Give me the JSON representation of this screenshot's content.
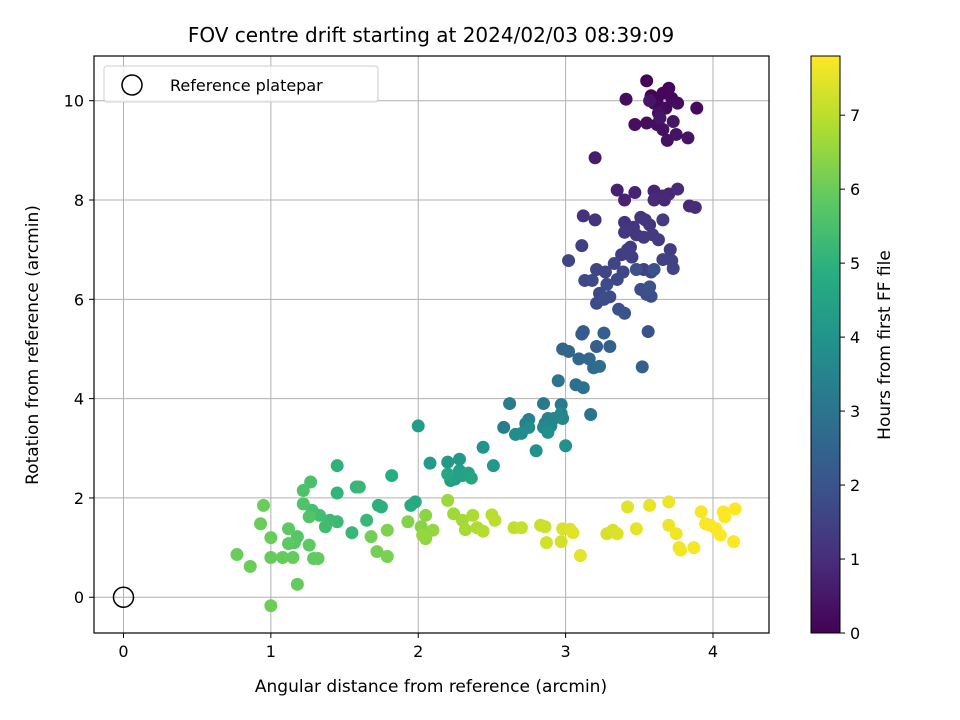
{
  "chart_data": {
    "type": "scatter",
    "title": "FOV centre drift starting at 2024/02/03 08:39:09",
    "xlabel": "Angular distance from reference (arcmin)",
    "ylabel": "Rotation from reference (arcmin)",
    "colorbar_label": "Hours from first FF file",
    "xlim": [
      -0.2,
      4.38
    ],
    "ylim": [
      -0.72,
      10.9
    ],
    "clim": [
      0,
      7.8
    ],
    "xticks": [
      0,
      1,
      2,
      3,
      4
    ],
    "yticks": [
      0,
      2,
      4,
      6,
      8,
      10
    ],
    "cticks": [
      0,
      1,
      2,
      3,
      4,
      5,
      6,
      7
    ],
    "grid": true,
    "colormap": "viridis",
    "legend": {
      "placement": "upper-left",
      "entries": [
        "Reference platepar"
      ]
    },
    "reference_point": {
      "x": 0,
      "y": 0
    },
    "points": [
      [
        3.55,
        10.4,
        0.05
      ],
      [
        3.58,
        10.1,
        0.08
      ],
      [
        3.62,
        9.98,
        0.1
      ],
      [
        3.66,
        10.15,
        0.12
      ],
      [
        3.7,
        10.25,
        0.14
      ],
      [
        3.6,
        9.95,
        0.16
      ],
      [
        3.72,
        10.05,
        0.18
      ],
      [
        3.68,
        9.85,
        0.2
      ],
      [
        3.76,
        9.95,
        0.22
      ],
      [
        3.89,
        9.85,
        0.24
      ],
      [
        3.41,
        10.03,
        0.26
      ],
      [
        3.47,
        9.52,
        0.28
      ],
      [
        3.55,
        9.55,
        0.3
      ],
      [
        3.62,
        9.52,
        0.32
      ],
      [
        3.66,
        9.42,
        0.34
      ],
      [
        3.63,
        9.75,
        0.36
      ],
      [
        3.69,
        9.2,
        0.38
      ],
      [
        3.75,
        9.32,
        0.4
      ],
      [
        3.83,
        9.25,
        0.42
      ],
      [
        3.64,
        9.65,
        0.44
      ],
      [
        3.57,
        10.0,
        0.46
      ],
      [
        3.73,
        9.58,
        0.48
      ],
      [
        3.2,
        8.85,
        0.6
      ],
      [
        3.35,
        8.2,
        0.7
      ],
      [
        3.47,
        8.15,
        0.75
      ],
      [
        3.4,
        8.0,
        0.78
      ],
      [
        3.6,
        8.18,
        0.8
      ],
      [
        3.62,
        8.05,
        0.82
      ],
      [
        3.66,
        8.08,
        0.84
      ],
      [
        3.7,
        8.12,
        0.86
      ],
      [
        3.67,
        8.0,
        0.88
      ],
      [
        3.6,
        8.0,
        0.9
      ],
      [
        3.76,
        8.22,
        0.92
      ],
      [
        3.84,
        7.88,
        0.94
      ],
      [
        3.88,
        7.85,
        0.96
      ],
      [
        3.12,
        7.68,
        1.1
      ],
      [
        3.2,
        7.6,
        1.12
      ],
      [
        3.4,
        7.55,
        1.14
      ],
      [
        3.46,
        7.45,
        1.16
      ],
      [
        3.51,
        7.65,
        1.18
      ],
      [
        3.54,
        7.6,
        1.2
      ],
      [
        3.57,
        7.5,
        1.22
      ],
      [
        3.48,
        7.3,
        1.24
      ],
      [
        3.4,
        7.35,
        1.26
      ],
      [
        3.44,
        7.05,
        1.28
      ],
      [
        3.53,
        7.25,
        1.3
      ],
      [
        3.59,
        7.3,
        1.32
      ],
      [
        3.63,
        7.2,
        1.34
      ],
      [
        3.66,
        7.6,
        1.36
      ],
      [
        3.71,
        7.0,
        1.38
      ],
      [
        3.38,
        6.9,
        1.4
      ],
      [
        3.11,
        7.08,
        1.42
      ],
      [
        3.45,
        6.85,
        1.44
      ],
      [
        3.42,
        7.0,
        1.46
      ],
      [
        3.53,
        6.6,
        1.48
      ],
      [
        3.58,
        6.55,
        1.5
      ],
      [
        3.66,
        6.8,
        1.52
      ],
      [
        3.72,
        6.78,
        1.54
      ],
      [
        3.73,
        6.62,
        1.56
      ],
      [
        3.02,
        6.78,
        1.58
      ],
      [
        3.21,
        6.6,
        1.6
      ],
      [
        3.27,
        6.55,
        1.62
      ],
      [
        3.33,
        6.72,
        1.64
      ],
      [
        3.39,
        6.55,
        1.66
      ],
      [
        3.35,
        6.4,
        1.68
      ],
      [
        3.13,
        6.38,
        1.7
      ],
      [
        3.18,
        6.38,
        1.72
      ],
      [
        3.23,
        6.12,
        1.74
      ],
      [
        3.28,
        6.3,
        1.76
      ],
      [
        3.21,
        5.92,
        1.78
      ],
      [
        3.3,
        6.05,
        1.8
      ],
      [
        3.26,
        6.0,
        1.82
      ],
      [
        3.51,
        6.2,
        1.84
      ],
      [
        3.55,
        6.1,
        1.86
      ],
      [
        3.58,
        6.06,
        1.88
      ],
      [
        3.48,
        6.6,
        1.9
      ],
      [
        3.6,
        6.6,
        1.92
      ],
      [
        3.57,
        6.25,
        1.94
      ],
      [
        3.36,
        5.8,
        1.96
      ],
      [
        3.4,
        5.72,
        1.98
      ],
      [
        3.56,
        5.35,
        2.0
      ],
      [
        3.12,
        5.35,
        2.2
      ],
      [
        3.11,
        5.3,
        2.25
      ],
      [
        3.21,
        5.05,
        2.3
      ],
      [
        3.26,
        5.32,
        2.35
      ],
      [
        3.3,
        5.05,
        2.4
      ],
      [
        2.98,
        5.0,
        2.5
      ],
      [
        3.02,
        4.95,
        2.55
      ],
      [
        3.09,
        4.8,
        2.6
      ],
      [
        3.16,
        4.8,
        2.65
      ],
      [
        3.19,
        4.62,
        2.7
      ],
      [
        3.23,
        4.65,
        2.75
      ],
      [
        3.52,
        4.64,
        2.4
      ],
      [
        3.07,
        4.28,
        2.85
      ],
      [
        3.12,
        4.22,
        2.9
      ],
      [
        2.95,
        4.36,
        2.95
      ],
      [
        3.17,
        3.68,
        3.0
      ],
      [
        2.85,
        3.9,
        3.1
      ],
      [
        2.97,
        3.88,
        3.15
      ],
      [
        2.62,
        3.9,
        3.2
      ],
      [
        2.58,
        3.42,
        3.25
      ],
      [
        2.73,
        3.5,
        3.3
      ],
      [
        2.75,
        3.58,
        3.35
      ],
      [
        2.86,
        3.5,
        3.4
      ],
      [
        2.88,
        3.6,
        3.45
      ],
      [
        2.92,
        3.6,
        3.5
      ],
      [
        2.97,
        3.7,
        3.55
      ],
      [
        2.9,
        3.45,
        3.6
      ],
      [
        2.85,
        3.42,
        3.65
      ],
      [
        2.75,
        3.42,
        3.7
      ],
      [
        2.66,
        3.28,
        3.75
      ],
      [
        2.7,
        3.3,
        3.8
      ],
      [
        2.88,
        3.32,
        3.85
      ],
      [
        2.8,
        2.95,
        3.9
      ],
      [
        3.0,
        3.05,
        3.95
      ],
      [
        2.98,
        3.6,
        3.58
      ],
      [
        2.44,
        3.02,
        4.0
      ],
      [
        2.51,
        2.65,
        4.1
      ],
      [
        2.28,
        2.78,
        4.15
      ],
      [
        2.2,
        2.72,
        4.2
      ],
      [
        2.08,
        2.7,
        4.25
      ],
      [
        2.22,
        2.35,
        4.3
      ],
      [
        2.28,
        2.55,
        4.35
      ],
      [
        2.25,
        2.38,
        4.4
      ],
      [
        2.3,
        2.45,
        4.45
      ],
      [
        2.34,
        2.5,
        4.5
      ],
      [
        2.36,
        2.4,
        4.55
      ],
      [
        2.2,
        2.48,
        4.6
      ],
      [
        2.0,
        3.45,
        4.3
      ],
      [
        1.98,
        1.92,
        4.7
      ],
      [
        1.95,
        1.85,
        4.75
      ],
      [
        1.82,
        2.45,
        4.85
      ],
      [
        1.73,
        1.85,
        4.9
      ],
      [
        1.75,
        1.82,
        4.95
      ],
      [
        1.45,
        2.65,
        5.0
      ],
      [
        1.45,
        2.1,
        5.05
      ],
      [
        1.58,
        2.22,
        5.1
      ],
      [
        1.55,
        1.3,
        5.15
      ],
      [
        1.65,
        1.55,
        5.2
      ],
      [
        1.45,
        1.52,
        5.25
      ],
      [
        1.4,
        1.55,
        5.3
      ],
      [
        1.37,
        1.42,
        5.35
      ],
      [
        1.33,
        1.65,
        5.4
      ],
      [
        1.28,
        1.75,
        5.45
      ],
      [
        1.27,
        2.32,
        5.5
      ],
      [
        1.22,
        2.15,
        5.55
      ],
      [
        1.22,
        1.88,
        5.6
      ],
      [
        1.26,
        1.62,
        5.65
      ],
      [
        1.18,
        1.22,
        5.7
      ],
      [
        1.16,
        1.1,
        5.75
      ],
      [
        1.12,
        1.38,
        5.8
      ],
      [
        1.12,
        1.08,
        5.82
      ],
      [
        1.26,
        1.05,
        5.85
      ],
      [
        1.29,
        0.78,
        5.88
      ],
      [
        1.32,
        0.78,
        5.9
      ],
      [
        1.18,
        0.26,
        5.92
      ],
      [
        1.08,
        0.8,
        5.94
      ],
      [
        1.15,
        0.8,
        5.95
      ],
      [
        1.0,
        0.8,
        5.96
      ],
      [
        1.0,
        1.2,
        5.97
      ],
      [
        0.95,
        1.85,
        5.98
      ],
      [
        0.93,
        1.48,
        5.99
      ],
      [
        0.77,
        0.86,
        6.0
      ],
      [
        0.86,
        0.62,
        6.02
      ],
      [
        1.0,
        -0.17,
        6.05
      ],
      [
        1.68,
        1.22,
        6.1
      ],
      [
        1.72,
        0.92,
        6.15
      ],
      [
        1.79,
        0.82,
        6.2
      ],
      [
        1.79,
        1.35,
        6.25
      ],
      [
        1.6,
        2.22,
        5.2
      ],
      [
        1.93,
        1.52,
        6.3
      ],
      [
        2.02,
        1.42,
        6.35
      ],
      [
        2.05,
        1.65,
        6.4
      ],
      [
        2.05,
        1.18,
        6.45
      ],
      [
        2.1,
        1.35,
        6.5
      ],
      [
        2.03,
        1.25,
        6.55
      ],
      [
        2.2,
        1.95,
        6.6
      ],
      [
        2.24,
        1.68,
        6.65
      ],
      [
        2.3,
        1.55,
        6.7
      ],
      [
        2.32,
        1.36,
        6.75
      ],
      [
        2.37,
        1.65,
        6.8
      ],
      [
        2.4,
        1.4,
        6.85
      ],
      [
        2.44,
        1.33,
        6.9
      ],
      [
        2.5,
        1.66,
        6.95
      ],
      [
        2.52,
        1.55,
        7.0
      ],
      [
        2.65,
        1.4,
        7.05
      ],
      [
        2.7,
        1.4,
        7.1
      ],
      [
        2.83,
        1.45,
        7.15
      ],
      [
        2.86,
        1.42,
        7.2
      ],
      [
        2.87,
        1.1,
        7.25
      ],
      [
        2.97,
        1.12,
        7.3
      ],
      [
        2.98,
        1.38,
        7.35
      ],
      [
        3.03,
        1.37,
        7.4
      ],
      [
        3.05,
        1.3,
        7.45
      ],
      [
        3.1,
        0.84,
        7.5
      ],
      [
        3.28,
        1.28,
        7.3
      ],
      [
        3.32,
        1.35,
        7.35
      ],
      [
        3.35,
        1.28,
        7.4
      ],
      [
        3.42,
        1.82,
        7.45
      ],
      [
        3.48,
        1.38,
        7.5
      ],
      [
        3.57,
        1.85,
        7.55
      ],
      [
        3.7,
        1.92,
        7.6
      ],
      [
        3.7,
        1.45,
        7.62
      ],
      [
        3.75,
        1.28,
        7.64
      ],
      [
        3.77,
        1.0,
        7.66
      ],
      [
        3.78,
        0.95,
        7.68
      ],
      [
        3.87,
        1.0,
        7.7
      ],
      [
        3.92,
        1.72,
        7.72
      ],
      [
        3.95,
        1.48,
        7.74
      ],
      [
        3.98,
        1.45,
        7.76
      ],
      [
        4.02,
        1.38,
        7.78
      ],
      [
        4.05,
        1.25,
        7.8
      ],
      [
        4.07,
        1.72,
        7.8
      ],
      [
        4.08,
        1.62,
        7.8
      ],
      [
        4.15,
        1.78,
        7.8
      ],
      [
        4.14,
        1.12,
        7.8
      ]
    ]
  }
}
